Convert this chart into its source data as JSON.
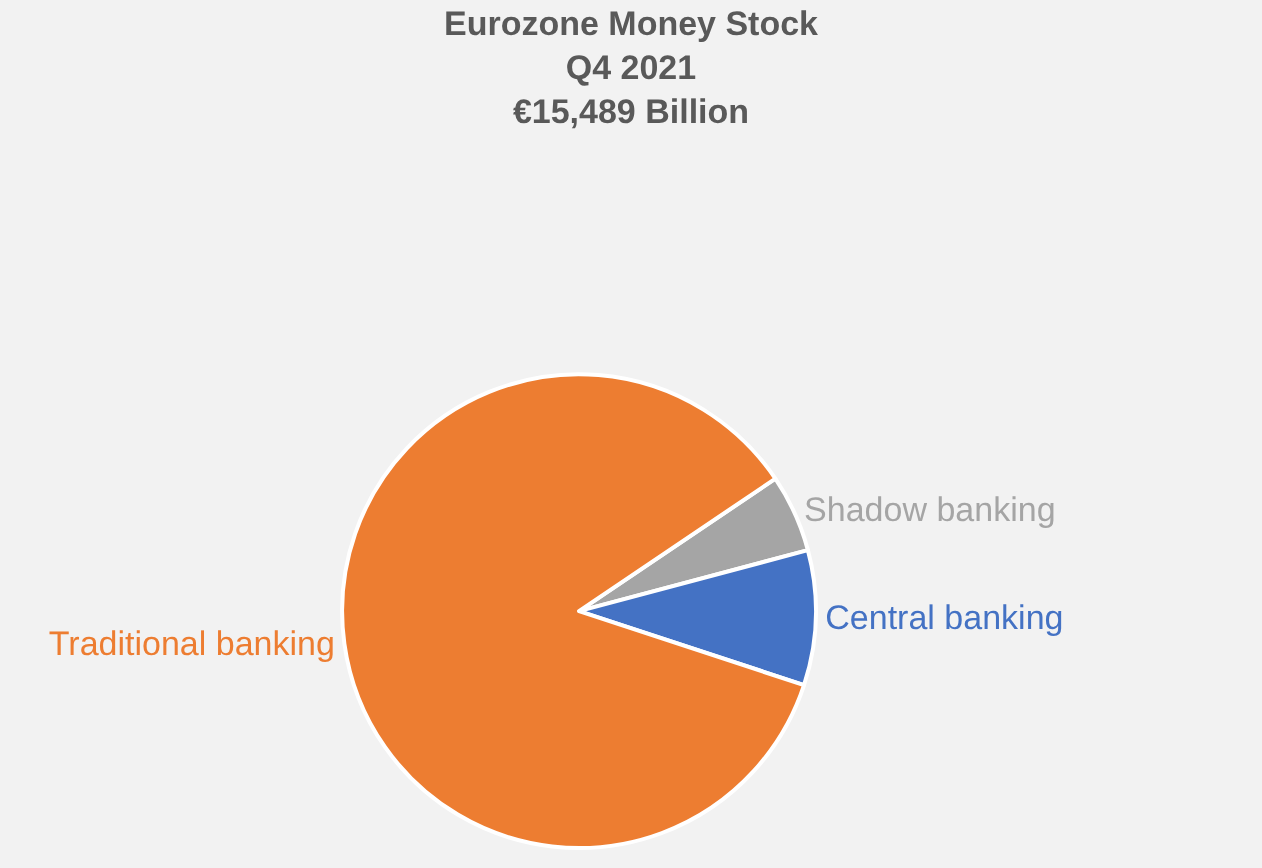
{
  "chart_data": {
    "type": "pie",
    "title": "Eurozone Money Stock\nQ4 2021\n€15,489 Billion",
    "categories": [
      "Shadow banking",
      "Central banking",
      "Traditional banking"
    ],
    "values": [
      5.3,
      9.2,
      85.5
    ],
    "colors": [
      "#a5a5a5",
      "#4472c4",
      "#ed7d31"
    ],
    "legend": false
  }
}
